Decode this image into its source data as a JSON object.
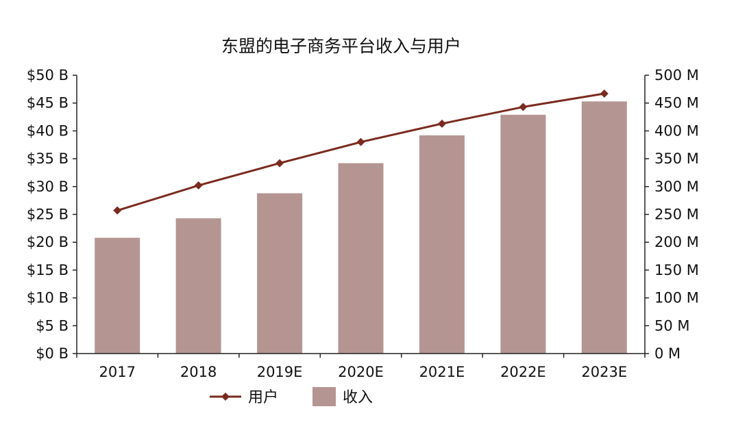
{
  "chart_data": {
    "type": "bar",
    "title": "东盟的电子商务平台收入与用户",
    "categories": [
      "2017",
      "2018",
      "2019E",
      "2020E",
      "2021E",
      "2022E",
      "2023E"
    ],
    "y_left": {
      "ylim": [
        0,
        50
      ],
      "ticks": [
        0,
        5,
        10,
        15,
        20,
        25,
        30,
        35,
        40,
        45,
        50
      ],
      "tick_labels": [
        "$0 B",
        "$5 B",
        "$10 B",
        "$15 B",
        "$20 B",
        "$25 B",
        "$30 B",
        "$35 B",
        "$40 B",
        "$45 B",
        "$50 B"
      ]
    },
    "y_right": {
      "ylim": [
        0,
        500
      ],
      "ticks": [
        0,
        50,
        100,
        150,
        200,
        250,
        300,
        350,
        400,
        450,
        500
      ],
      "tick_labels": [
        "0 M",
        "50 M",
        "100 M",
        "150 M",
        "200 M",
        "250 M",
        "300 M",
        "350 M",
        "400 M",
        "450 M",
        "500 M"
      ]
    },
    "series": [
      {
        "name": "收入",
        "type": "bar",
        "axis": "left",
        "color": "#b49592",
        "values": [
          20.8,
          24.3,
          28.8,
          34.2,
          39.2,
          42.9,
          45.3
        ]
      },
      {
        "name": "用户",
        "type": "line",
        "axis": "right",
        "color": "#7a2a1e",
        "values": [
          257,
          302,
          342,
          380,
          413,
          443,
          467
        ]
      }
    ],
    "legend": {
      "placement": "bottom-center",
      "order": [
        "用户",
        "收入"
      ]
    },
    "grid": false
  }
}
